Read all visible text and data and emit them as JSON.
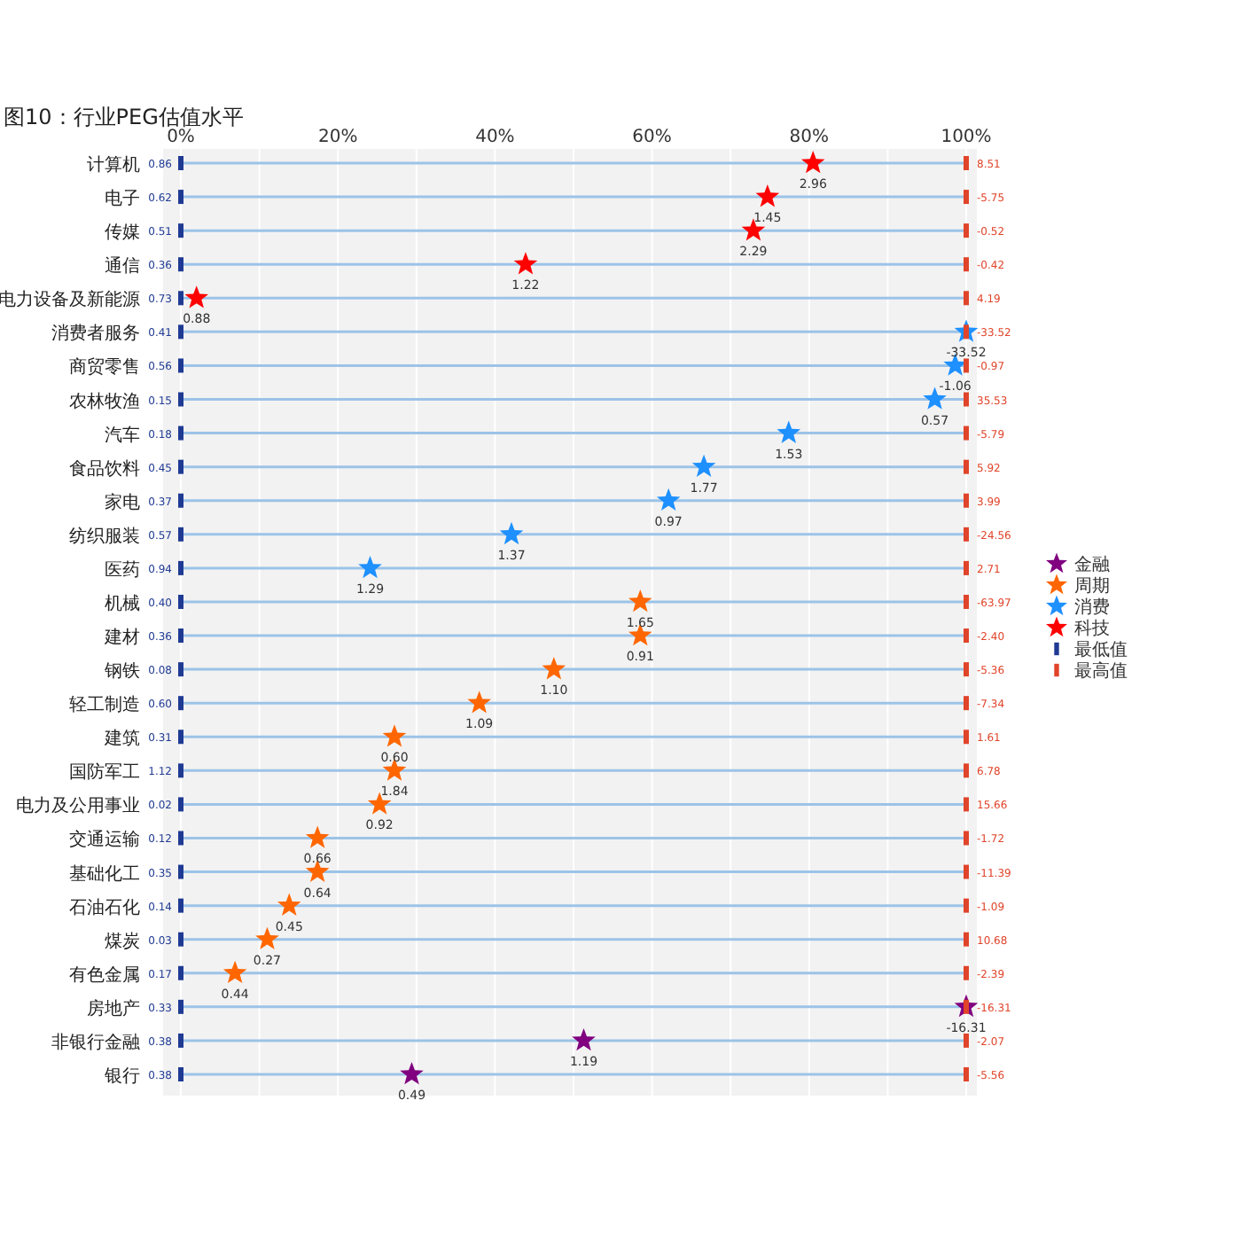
{
  "chart_data": {
    "type": "scatter",
    "orientation": "horizontal",
    "title": "图10：行业PEG估值水平",
    "categories": [
      "计算机",
      "电子",
      "传媒",
      "通信",
      "电力设备及新能源",
      "消费者服务",
      "商贸零售",
      "农林牧渔",
      "汽车",
      "食品饮料",
      "家电",
      "纺织服装",
      "医药",
      "机械",
      "建材",
      "钢铁",
      "轻工制造",
      "建筑",
      "国防军工",
      "电力及公用事业",
      "交通运输",
      "基础化工",
      "石油石化",
      "煤炭",
      "有色金属",
      "房地产",
      "非银行金融",
      "银行"
    ],
    "xlim": [
      0,
      100
    ],
    "xticks": [
      {
        "value": 0,
        "label": "0%"
      },
      {
        "value": 10,
        "label": null
      },
      {
        "value": 20,
        "label": "20%"
      },
      {
        "value": 30,
        "label": null
      },
      {
        "value": 40,
        "label": "40%"
      },
      {
        "value": 50,
        "label": null
      },
      {
        "value": 60,
        "label": "60%"
      },
      {
        "value": 70,
        "label": null
      },
      {
        "value": 80,
        "label": "80%"
      },
      {
        "value": 90,
        "label": null
      },
      {
        "value": 100,
        "label": "100%"
      }
    ],
    "grid": true,
    "legend": "right",
    "series": [
      {
        "name": "金融",
        "color": "#800080",
        "marker": "star",
        "values": [
          null,
          null,
          null,
          null,
          null,
          null,
          null,
          null,
          null,
          null,
          null,
          null,
          null,
          null,
          null,
          null,
          null,
          null,
          null,
          null,
          null,
          null,
          null,
          null,
          null,
          100,
          51.3,
          29.4
        ]
      },
      {
        "name": "周期",
        "color": "#ff6600",
        "marker": "star",
        "values": [
          null,
          null,
          null,
          null,
          null,
          null,
          null,
          null,
          null,
          null,
          null,
          null,
          null,
          58.5,
          58.5,
          47.5,
          38.0,
          27.2,
          27.2,
          25.3,
          17.4,
          17.4,
          13.8,
          11.0,
          6.9,
          null,
          null,
          null
        ]
      },
      {
        "name": "消费",
        "color": "#1e90ff",
        "marker": "star",
        "values": [
          null,
          null,
          null,
          null,
          null,
          100,
          98.6,
          96.0,
          77.4,
          66.6,
          62.1,
          42.1,
          24.1,
          null,
          null,
          null,
          null,
          null,
          null,
          null,
          null,
          null,
          null,
          null,
          null,
          null,
          null,
          null
        ]
      },
      {
        "name": "科技",
        "color": "#ff0000",
        "marker": "star",
        "values": [
          80.5,
          74.7,
          72.9,
          43.9,
          2.0,
          null,
          null,
          null,
          null,
          null,
          null,
          null,
          null,
          null,
          null,
          null,
          null,
          null,
          null,
          null,
          null,
          null,
          null,
          null,
          null,
          null,
          null,
          null
        ]
      },
      {
        "name": "最低值",
        "color": "#1f3a93",
        "marker": "square",
        "values": [
          0,
          0,
          0,
          0,
          0,
          0,
          0,
          0,
          0,
          0,
          0,
          0,
          0,
          0,
          0,
          0,
          0,
          0,
          0,
          0,
          0,
          0,
          0,
          0,
          0,
          0,
          0,
          0
        ]
      },
      {
        "name": "最高值",
        "color": "#e0442a",
        "marker": "square",
        "values": [
          100,
          100,
          100,
          100,
          100,
          100,
          100,
          100,
          100,
          100,
          100,
          100,
          100,
          100,
          100,
          100,
          100,
          100,
          100,
          100,
          100,
          100,
          100,
          100,
          100,
          100,
          100,
          100
        ]
      }
    ],
    "annotations": [
      {
        "text": "2.96",
        "x": 80.5,
        "y": "计算机"
      },
      {
        "text": "0.86",
        "x": 0,
        "y": "计算机"
      },
      {
        "text": "8.51",
        "x": 100,
        "y": "计算机"
      },
      {
        "text": "1.45",
        "x": 74.7,
        "y": "电子"
      },
      {
        "text": "0.62",
        "x": 0,
        "y": "电子"
      },
      {
        "text": "-5.75",
        "x": 100,
        "y": "电子"
      },
      {
        "text": "2.29",
        "x": 72.9,
        "y": "传媒"
      },
      {
        "text": "0.51",
        "x": 0,
        "y": "传媒"
      },
      {
        "text": "-0.52",
        "x": 100,
        "y": "传媒"
      },
      {
        "text": "1.22",
        "x": 43.9,
        "y": "通信"
      },
      {
        "text": "0.36",
        "x": 0,
        "y": "通信"
      },
      {
        "text": "-0.42",
        "x": 100,
        "y": "通信"
      },
      {
        "text": "0.88",
        "x": 2.0,
        "y": "电力设备及新能源"
      },
      {
        "text": "0.73",
        "x": 0,
        "y": "电力设备及新能源"
      },
      {
        "text": "4.19",
        "x": 100,
        "y": "电力设备及新能源"
      },
      {
        "text": "-33.52",
        "x": 100,
        "y": "消费者服务"
      },
      {
        "text": "0.41",
        "x": 0,
        "y": "消费者服务"
      },
      {
        "text": "-33.52",
        "x": 100,
        "y": "消费者服务"
      },
      {
        "text": "-1.06",
        "x": 98.6,
        "y": "商贸零售"
      },
      {
        "text": "0.56",
        "x": 0,
        "y": "商贸零售"
      },
      {
        "text": "-0.97",
        "x": 100,
        "y": "商贸零售"
      },
      {
        "text": "0.57",
        "x": 96.0,
        "y": "农林牧渔"
      },
      {
        "text": "0.15",
        "x": 0,
        "y": "农林牧渔"
      },
      {
        "text": "35.53",
        "x": 100,
        "y": "农林牧渔"
      },
      {
        "text": "1.53",
        "x": 77.4,
        "y": "汽车"
      },
      {
        "text": "0.18",
        "x": 0,
        "y": "汽车"
      },
      {
        "text": "-5.79",
        "x": 100,
        "y": "汽车"
      },
      {
        "text": "1.77",
        "x": 66.6,
        "y": "食品饮料"
      },
      {
        "text": "0.45",
        "x": 0,
        "y": "食品饮料"
      },
      {
        "text": "5.92",
        "x": 100,
        "y": "食品饮料"
      },
      {
        "text": "0.97",
        "x": 62.1,
        "y": "家电"
      },
      {
        "text": "0.37",
        "x": 0,
        "y": "家电"
      },
      {
        "text": "3.99",
        "x": 100,
        "y": "家电"
      },
      {
        "text": "1.37",
        "x": 42.1,
        "y": "纺织服装"
      },
      {
        "text": "0.57",
        "x": 0,
        "y": "纺织服装"
      },
      {
        "text": "-24.56",
        "x": 100,
        "y": "纺织服装"
      },
      {
        "text": "1.29",
        "x": 24.1,
        "y": "医药"
      },
      {
        "text": "0.94",
        "x": 0,
        "y": "医药"
      },
      {
        "text": "2.71",
        "x": 100,
        "y": "医药"
      },
      {
        "text": "1.65",
        "x": 58.5,
        "y": "机械"
      },
      {
        "text": "0.40",
        "x": 0,
        "y": "机械"
      },
      {
        "text": "-63.97",
        "x": 100,
        "y": "机械"
      },
      {
        "text": "0.91",
        "x": 58.5,
        "y": "建材"
      },
      {
        "text": "0.36",
        "x": 0,
        "y": "建材"
      },
      {
        "text": "-2.40",
        "x": 100,
        "y": "建材"
      },
      {
        "text": "1.10",
        "x": 47.5,
        "y": "钢铁"
      },
      {
        "text": "0.08",
        "x": 0,
        "y": "钢铁"
      },
      {
        "text": "-5.36",
        "x": 100,
        "y": "钢铁"
      },
      {
        "text": "1.09",
        "x": 38.0,
        "y": "轻工制造"
      },
      {
        "text": "0.60",
        "x": 0,
        "y": "轻工制造"
      },
      {
        "text": "-7.34",
        "x": 100,
        "y": "轻工制造"
      },
      {
        "text": "0.60",
        "x": 27.2,
        "y": "建筑"
      },
      {
        "text": "0.31",
        "x": 0,
        "y": "建筑"
      },
      {
        "text": "1.61",
        "x": 100,
        "y": "建筑"
      },
      {
        "text": "1.84",
        "x": 27.2,
        "y": "国防军工"
      },
      {
        "text": "1.12",
        "x": 0,
        "y": "国防军工"
      },
      {
        "text": "6.78",
        "x": 100,
        "y": "国防军工"
      },
      {
        "text": "0.92",
        "x": 25.3,
        "y": "电力及公用事业"
      },
      {
        "text": "0.02",
        "x": 0,
        "y": "电力及公用事业"
      },
      {
        "text": "15.66",
        "x": 100,
        "y": "电力及公用事业"
      },
      {
        "text": "0.66",
        "x": 17.4,
        "y": "交通运输"
      },
      {
        "text": "0.12",
        "x": 0,
        "y": "交通运输"
      },
      {
        "text": "-1.72",
        "x": 100,
        "y": "交通运输"
      },
      {
        "text": "0.64",
        "x": 17.4,
        "y": "基础化工"
      },
      {
        "text": "0.35",
        "x": 0,
        "y": "基础化工"
      },
      {
        "text": "-11.39",
        "x": 100,
        "y": "基础化工"
      },
      {
        "text": "0.45",
        "x": 13.8,
        "y": "石油石化"
      },
      {
        "text": "0.14",
        "x": 0,
        "y": "石油石化"
      },
      {
        "text": "-1.09",
        "x": 100,
        "y": "石油石化"
      },
      {
        "text": "0.27",
        "x": 11.0,
        "y": "煤炭"
      },
      {
        "text": "0.03",
        "x": 0,
        "y": "煤炭"
      },
      {
        "text": "10.68",
        "x": 100,
        "y": "煤炭"
      },
      {
        "text": "0.44",
        "x": 6.9,
        "y": "有色金属"
      },
      {
        "text": "0.17",
        "x": 0,
        "y": "有色金属"
      },
      {
        "text": "-2.39",
        "x": 100,
        "y": "有色金属"
      },
      {
        "text": "-16.31",
        "x": 100,
        "y": "房地产"
      },
      {
        "text": "0.33",
        "x": 0,
        "y": "房地产"
      },
      {
        "text": "-16.31",
        "x": 100,
        "y": "房地产"
      },
      {
        "text": "1.19",
        "x": 51.3,
        "y": "非银行金融"
      },
      {
        "text": "0.38",
        "x": 0,
        "y": "非银行金融"
      },
      {
        "text": "-2.07",
        "x": 100,
        "y": "非银行金融"
      },
      {
        "text": "0.49",
        "x": 29.4,
        "y": "银行"
      },
      {
        "text": "0.38",
        "x": 0,
        "y": "银行"
      },
      {
        "text": "-5.56",
        "x": 100,
        "y": "银行"
      }
    ]
  }
}
